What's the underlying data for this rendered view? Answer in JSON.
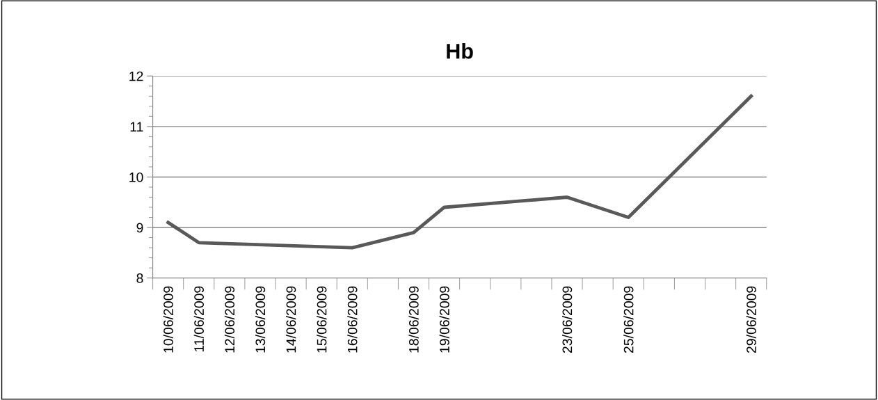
{
  "chart_data": {
    "type": "line",
    "title": "Hb",
    "x": [
      "2009-06-10",
      "2009-06-11",
      "2009-06-16",
      "2009-06-18",
      "2009-06-19",
      "2009-06-23",
      "2009-06-25",
      "2009-06-29"
    ],
    "series": [
      {
        "color": "#595959",
        "values": [
          9.1,
          8.7,
          8.6,
          8.9,
          9.4,
          9.6,
          9.2,
          11.6
        ]
      }
    ],
    "xlim": [
      "2009-06-09T12:00",
      "2009-06-29T12:00"
    ],
    "xticks": [
      {
        "value": "2009-06-10",
        "label": "10/06/2009"
      },
      {
        "value": "2009-06-11",
        "label": "11/06/2009"
      },
      {
        "value": "2009-06-12",
        "label": "12/06/2009"
      },
      {
        "value": "2009-06-13",
        "label": "13/06/2009"
      },
      {
        "value": "2009-06-14",
        "label": "14/06/2009"
      },
      {
        "value": "2009-06-15",
        "label": "15/06/2009"
      },
      {
        "value": "2009-06-16",
        "label": "16/06/2009"
      },
      {
        "value": "2009-06-18",
        "label": "18/06/2009"
      },
      {
        "value": "2009-06-19",
        "label": "19/06/2009"
      },
      {
        "value": "2009-06-23",
        "label": "23/06/2009"
      },
      {
        "value": "2009-06-25",
        "label": "25/06/2009"
      },
      {
        "value": "2009-06-29",
        "label": "29/06/2009"
      }
    ],
    "ylim": [
      8,
      12
    ],
    "yticks": [
      8,
      9,
      10,
      11,
      12
    ],
    "grid": "y",
    "marker": "none",
    "line_style": "solid"
  }
}
